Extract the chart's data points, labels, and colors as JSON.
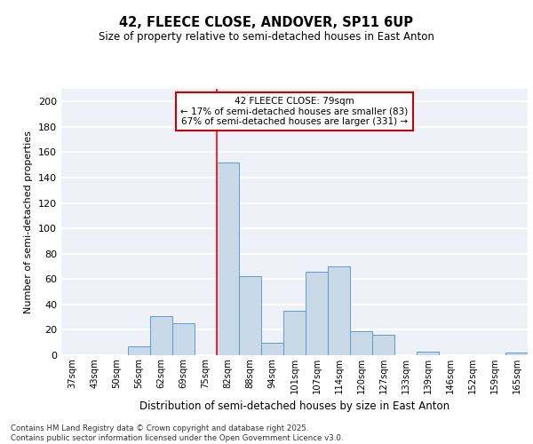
{
  "title": "42, FLEECE CLOSE, ANDOVER, SP11 6UP",
  "subtitle": "Size of property relative to semi-detached houses in East Anton",
  "xlabel": "Distribution of semi-detached houses by size in East Anton",
  "ylabel": "Number of semi-detached properties",
  "categories": [
    "37sqm",
    "43sqm",
    "50sqm",
    "56sqm",
    "62sqm",
    "69sqm",
    "75sqm",
    "82sqm",
    "88sqm",
    "94sqm",
    "101sqm",
    "107sqm",
    "114sqm",
    "120sqm",
    "127sqm",
    "133sqm",
    "139sqm",
    "146sqm",
    "152sqm",
    "159sqm",
    "165sqm"
  ],
  "values": [
    0,
    0,
    0,
    7,
    31,
    25,
    0,
    152,
    62,
    10,
    35,
    66,
    70,
    19,
    16,
    0,
    3,
    0,
    0,
    0,
    2
  ],
  "bar_color": "#c9d9e8",
  "bar_edge_color": "#5b9bd5",
  "background_color": "#eef2f8",
  "grid_color": "#ffffff",
  "red_line_index": 7,
  "annotation_text": "42 FLEECE CLOSE: 79sqm\n← 17% of semi-detached houses are smaller (83)\n67% of semi-detached houses are larger (331) →",
  "annotation_box_color": "#ffffff",
  "annotation_box_edge": "#cc0000",
  "footnote": "Contains HM Land Registry data © Crown copyright and database right 2025.\nContains public sector information licensed under the Open Government Licence v3.0.",
  "ylim": [
    0,
    210
  ],
  "yticks": [
    0,
    20,
    40,
    60,
    80,
    100,
    120,
    140,
    160,
    180,
    200
  ]
}
